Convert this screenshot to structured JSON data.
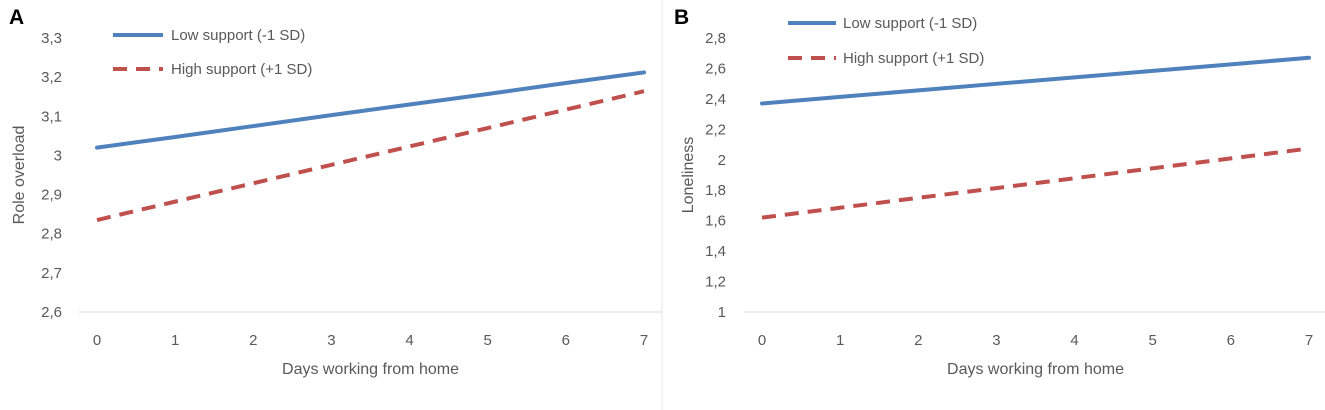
{
  "colors": {
    "low": "#4f81bd",
    "high": "#c0504d",
    "text": "#595959",
    "axis": "#d9d9d9",
    "divider": "#e8e8e8"
  },
  "chart_data": [
    {
      "panel": "A",
      "type": "line",
      "xlabel": "Days working from home",
      "ylabel": "Role overload",
      "ylim": [
        2.6,
        3.3
      ],
      "yticks": [
        "2,6",
        "2,7",
        "2,8",
        "2,9",
        "3",
        "3,1",
        "3,2",
        "3,3"
      ],
      "x": [
        0,
        1,
        2,
        3,
        4,
        5,
        6,
        7
      ],
      "series": [
        {
          "name": "Low support (-1 SD)",
          "style": "solid",
          "values": [
            3.02,
            3.047,
            3.075,
            3.103,
            3.13,
            3.157,
            3.185,
            3.212
          ]
        },
        {
          "name": "High support (+1 SD)",
          "style": "dashed",
          "values": [
            2.835,
            2.882,
            2.929,
            2.976,
            3.023,
            3.07,
            3.117,
            3.164
          ]
        }
      ]
    },
    {
      "panel": "B",
      "type": "line",
      "xlabel": "Days  working from home",
      "ylabel": "Loneliness",
      "ylim": [
        1.0,
        2.8
      ],
      "yticks": [
        "1",
        "1,2",
        "1,4",
        "1,6",
        "1,8",
        "2",
        "2,2",
        "2,4",
        "2,6",
        "2,8"
      ],
      "x": [
        0,
        1,
        2,
        3,
        4,
        5,
        6,
        7
      ],
      "series": [
        {
          "name": "Low support (-1 SD)",
          "style": "solid",
          "values": [
            2.37,
            2.413,
            2.456,
            2.499,
            2.541,
            2.584,
            2.627,
            2.67
          ]
        },
        {
          "name": "High support (+1 SD)",
          "style": "dashed",
          "values": [
            1.62,
            1.685,
            1.75,
            1.814,
            1.879,
            1.944,
            2.009,
            2.074
          ]
        }
      ]
    }
  ]
}
